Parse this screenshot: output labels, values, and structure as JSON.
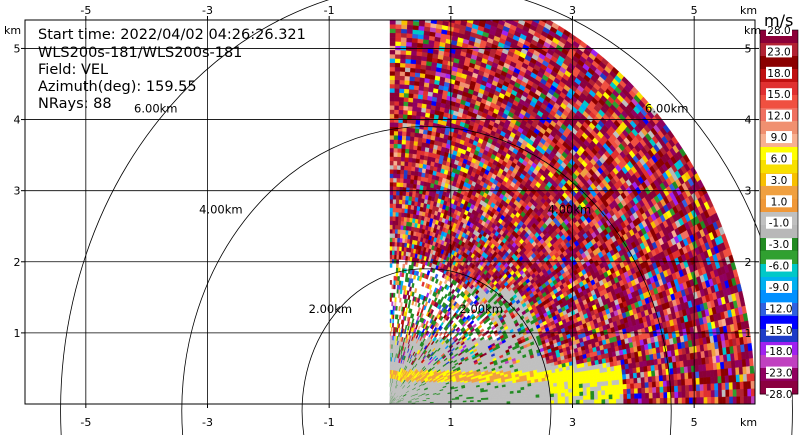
{
  "info": {
    "start_time": "Start time: 2022/04/02 04:26:26.321",
    "station": "WLS200s-181/WLS200s-181",
    "field": "Field: VEL",
    "azimuth": "Azimuth(deg): 159.55",
    "nrays": "NRays: 88"
  },
  "colorbar": {
    "unit": "m/s",
    "colors": [
      "#8b0038",
      "#b22233",
      "#8b0000",
      "#c01010",
      "#e03030",
      "#f05040",
      "#f07060",
      "#f09070",
      "#f8b090",
      "#ffff00",
      "#f8e000",
      "#f8c000",
      "#f0a040",
      "#f09838",
      "#c0c0c0",
      "#b8b8b8",
      "#228b22",
      "#30a030",
      "#00c8c8",
      "#00b0f0",
      "#0090ff",
      "#3060e0",
      "#0000ff",
      "#1e3cc8",
      "#a020f0",
      "#c040c0",
      "#900060",
      "#8b0040"
    ],
    "labels": [
      "28.0",
      "23.0",
      "18.0",
      "15.0",
      "12.0",
      "9.0",
      "6.0",
      "3.0",
      "1.0",
      "-1.0",
      "-3.0",
      "-6.0",
      "-9.0",
      "-12.0",
      "-15.0",
      "-18.0",
      "-23.0",
      "-28.0"
    ]
  },
  "chart_data": {
    "type": "heatmap",
    "title": "",
    "xlabel": "km",
    "ylabel": "km",
    "xlim": [
      -6,
      6
    ],
    "ylim": [
      0,
      5.4
    ],
    "x_ticks": [
      -5,
      -3,
      -1,
      1,
      3,
      5
    ],
    "y_ticks": [
      1,
      2,
      3,
      4,
      5
    ],
    "grid": true,
    "range_rings_km": [
      2,
      4,
      6
    ],
    "range_ring_labels": [
      "2.00km",
      "4.00km",
      "6.00km"
    ],
    "sector": {
      "azimuth_min_deg": 0,
      "azimuth_max_deg": 90,
      "max_range_km": 6.0,
      "nrays": 88
    },
    "field": "VEL",
    "color_scale": {
      "min": -28,
      "max": 28,
      "unit": "m/s"
    }
  }
}
